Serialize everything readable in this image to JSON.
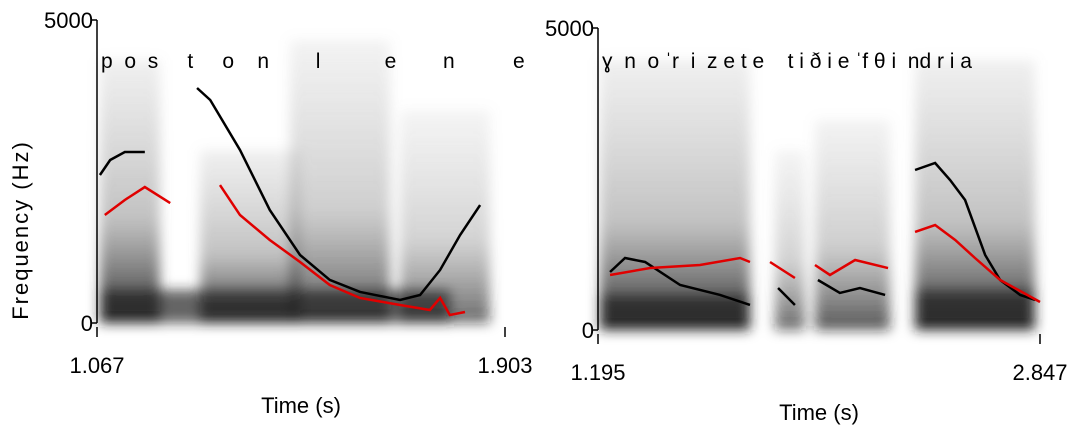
{
  "chart_data": [
    {
      "type": "line",
      "ylabel": "Frequency (Hz)",
      "xlabel": "Time (s)",
      "annotation": "p  o  s     t     o    n        l           e        n          e",
      "xlim": [
        1.067,
        1.903
      ],
      "xticks": [
        1.067,
        1.903
      ],
      "ylim": [
        0,
        5000
      ],
      "yticks": [
        0,
        5000
      ],
      "series": [
        {
          "color": "#000000",
          "x": [
            1.073,
            1.094,
            1.124,
            1.165,
            1.22,
            1.272,
            1.299,
            1.36,
            1.421,
            1.483,
            1.544,
            1.606,
            1.688,
            1.729,
            1.77,
            1.811,
            1.852
          ],
          "values": [
            2442,
            2690,
            2822,
            2822,
            null,
            3878,
            3680,
            2855,
            1865,
            1122,
            710,
            512,
            380,
            462,
            875,
            1452,
            1947
          ]
        },
        {
          "color": "#e00000",
          "x": [
            1.083,
            1.124,
            1.165,
            1.217,
            1.27,
            1.319,
            1.36,
            1.421,
            1.483,
            1.544,
            1.606,
            1.688,
            1.749,
            1.77,
            1.79,
            1.821
          ],
          "values": [
            1782,
            2030,
            2244,
            1980,
            null,
            2277,
            1782,
            1370,
            1007,
            627,
            413,
            297,
            215,
            413,
            132,
            182
          ]
        }
      ]
    },
    {
      "type": "line",
      "xlabel": "Time (s)",
      "annotation": "ɣ  n  o ˈr  i  z e t e    t i ð i e ˈf θ i  nd r i a",
      "xlim": [
        1.195,
        2.847
      ],
      "xticks": [
        1.195,
        2.847
      ],
      "ylim": [
        0,
        5000
      ],
      "yticks": [
        0,
        5000
      ],
      "series": [
        {
          "color": "#000000",
          "x": [
            1.24,
            1.296,
            1.371,
            1.502,
            1.651,
            1.763,
            1.8,
            1.868,
            1.931,
            1.97,
            2.017,
            2.099,
            2.174,
            2.268,
            2.33,
            2.38,
            2.455,
            2.511,
            2.567,
            2.642,
            2.698,
            2.773,
            2.829
          ],
          "values": [
            960,
            1192,
            1126,
            745,
            580,
            414,
            null,
            695,
            414,
            null,
            828,
            613,
            695,
            580,
            null,
            2649,
            2765,
            2483,
            2152,
            1242,
            828,
            580,
            497
          ]
        },
        {
          "color": "#e00000",
          "x": [
            1.24,
            1.39,
            1.576,
            1.726,
            1.763,
            1.8,
            1.838,
            1.931,
            1.97,
            2.006,
            2.062,
            2.156,
            2.279,
            2.33,
            2.38,
            2.455,
            2.53,
            2.604,
            2.698,
            2.847
          ],
          "values": [
            911,
            1026,
            1076,
            1192,
            1126,
            null,
            1126,
            861,
            null,
            1076,
            911,
            1159,
            1026,
            null,
            1623,
            1738,
            1490,
            1192,
            828,
            464
          ]
        }
      ]
    }
  ]
}
